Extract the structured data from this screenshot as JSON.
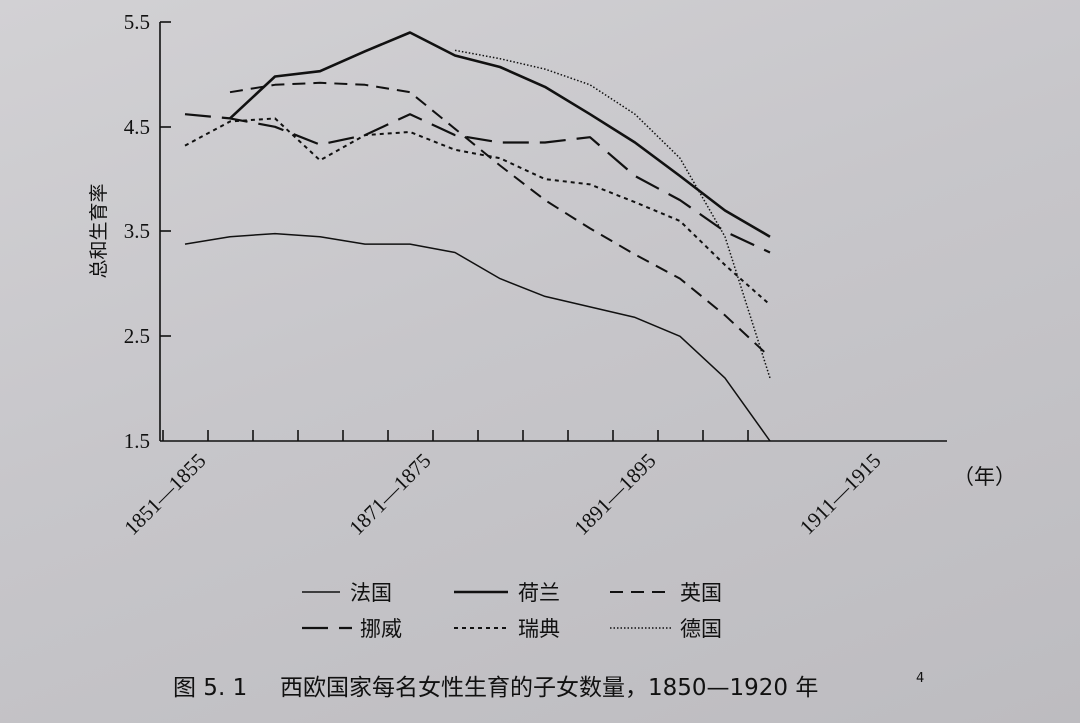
{
  "chart_data": {
    "type": "line",
    "ylabel": "总和生育率",
    "x_unit": "（年）",
    "x_tick_labels": [
      "1851—1855",
      "1871—1875",
      "1891—1895",
      "1911—1915"
    ],
    "yticks": [
      "5.5",
      "4.5",
      "3.5",
      "2.5",
      "1.5"
    ],
    "ylim": [
      1.5,
      5.5
    ],
    "x_periods": [
      1853,
      1858,
      1863,
      1868,
      1873,
      1878,
      1883,
      1888,
      1893,
      1898,
      1903,
      1908,
      1913,
      1918
    ],
    "series": [
      {
        "name": "法国",
        "style": "thin",
        "x": [
          1853,
          1858,
          1863,
          1868,
          1873,
          1878,
          1883,
          1888,
          1893,
          1898,
          1903,
          1908,
          1913,
          1918
        ],
        "values": [
          3.38,
          3.45,
          3.48,
          3.45,
          3.38,
          3.38,
          3.3,
          3.05,
          2.88,
          2.78,
          2.68,
          2.5,
          2.1,
          1.5
        ]
      },
      {
        "name": "荷兰",
        "style": "solid",
        "x": [
          1858,
          1863,
          1868,
          1873,
          1878,
          1883,
          1888,
          1893,
          1898,
          1903,
          1908,
          1913,
          1918
        ],
        "values": [
          4.58,
          4.98,
          5.03,
          5.22,
          5.4,
          5.18,
          5.07,
          4.88,
          4.62,
          4.35,
          4.03,
          3.7,
          3.45
        ]
      },
      {
        "name": "英国",
        "style": "short-dash",
        "x": [
          1858,
          1863,
          1868,
          1873,
          1878,
          1883,
          1888,
          1893,
          1898,
          1903,
          1908,
          1913,
          1918
        ],
        "values": [
          4.83,
          4.9,
          4.92,
          4.9,
          4.83,
          4.48,
          4.13,
          3.8,
          3.53,
          3.28,
          3.05,
          2.7,
          2.3
        ]
      },
      {
        "name": "挪威",
        "style": "long-dash",
        "x": [
          1853,
          1858,
          1863,
          1868,
          1873,
          1878,
          1883,
          1888,
          1893,
          1898,
          1903,
          1908,
          1913,
          1918
        ],
        "values": [
          4.62,
          4.58,
          4.5,
          4.33,
          4.42,
          4.62,
          4.42,
          4.35,
          4.35,
          4.4,
          4.03,
          3.8,
          3.5,
          3.3
        ]
      },
      {
        "name": "瑞典",
        "style": "dotted",
        "x": [
          1853,
          1858,
          1863,
          1868,
          1873,
          1878,
          1883,
          1888,
          1893,
          1898,
          1903,
          1908,
          1913,
          1918
        ],
        "values": [
          4.32,
          4.55,
          4.58,
          4.18,
          4.42,
          4.45,
          4.28,
          4.2,
          4.0,
          3.95,
          3.78,
          3.6,
          3.18,
          2.8
        ]
      },
      {
        "name": "德国",
        "style": "fine-dot",
        "x": [
          1883,
          1888,
          1893,
          1898,
          1903,
          1908,
          1913,
          1918
        ],
        "values": [
          5.23,
          5.15,
          5.05,
          4.9,
          4.62,
          4.2,
          3.45,
          2.1
        ]
      }
    ]
  },
  "legend": {
    "items": [
      {
        "label": "法国",
        "style": "thin"
      },
      {
        "label": "荷兰",
        "style": "solid"
      },
      {
        "label": "英国",
        "style": "short-dash"
      },
      {
        "label": "挪威",
        "style": "long-dash"
      },
      {
        "label": "瑞典",
        "style": "dotted"
      },
      {
        "label": "德国",
        "style": "fine-dot"
      }
    ]
  },
  "caption": {
    "figure_number": "图 5. 1",
    "text": "西欧国家每名女性生育的子女数量，1850—1920 年",
    "note": "4"
  }
}
